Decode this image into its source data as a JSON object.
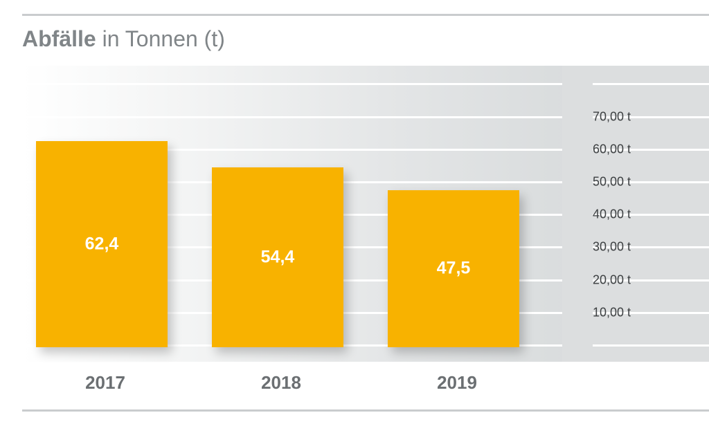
{
  "title": {
    "bold": "Abfälle",
    "rest": " in Tonnen (t)"
  },
  "chart_data": {
    "type": "bar",
    "title": "Abfälle in Tonnen (t)",
    "categories": [
      "2017",
      "2018",
      "2019"
    ],
    "values": [
      62.4,
      54.4,
      47.5
    ],
    "value_labels": [
      "62,4",
      "54,4",
      "47,5"
    ],
    "unit": "t",
    "ylim": [
      0,
      80
    ],
    "y_ticks": [
      10,
      20,
      30,
      40,
      50,
      60,
      70
    ],
    "y_tick_labels": [
      "10,00 t",
      "20,00 t",
      "30,00 t",
      "40,00 t",
      "50,00 t",
      "60,00 t",
      "70,00 t"
    ],
    "bar_color": "#f8b200",
    "grid": true,
    "axis_position": "right"
  }
}
